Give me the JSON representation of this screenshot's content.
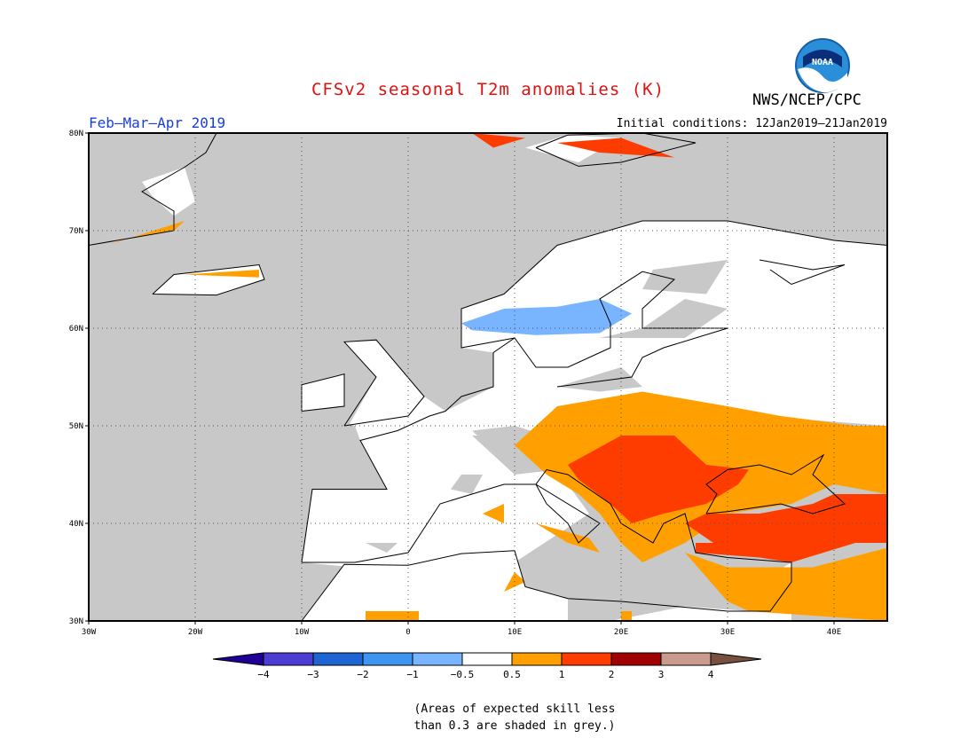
{
  "header": {
    "title": "CFSv2 seasonal T2m anomalies (K)",
    "period": "Feb–Mar–Apr 2019",
    "initial_conditions": "Initial conditions: 12Jan2019–21Jan2019",
    "agency": "NWS/NCEP/CPC",
    "logo_text": "NOAA"
  },
  "map": {
    "lon_range": [
      -30,
      45
    ],
    "lat_range": [
      30,
      80
    ],
    "lon_ticks": [
      {
        "value": -30,
        "label": "30W"
      },
      {
        "value": -20,
        "label": "20W"
      },
      {
        "value": -10,
        "label": "10W"
      },
      {
        "value": 0,
        "label": "0"
      },
      {
        "value": 10,
        "label": "10E"
      },
      {
        "value": 20,
        "label": "20E"
      },
      {
        "value": 30,
        "label": "30E"
      },
      {
        "value": 40,
        "label": "40E"
      }
    ],
    "lat_ticks": [
      {
        "value": 30,
        "label": "30N"
      },
      {
        "value": 40,
        "label": "40N"
      },
      {
        "value": 50,
        "label": "50N"
      },
      {
        "value": 60,
        "label": "60N"
      },
      {
        "value": 70,
        "label": "70N"
      },
      {
        "value": 80,
        "label": "80N"
      }
    ],
    "colors": {
      "low_skill": "#c8c8c8",
      "neutral": "#ffffff",
      "warm1": "#ffa000",
      "warm2": "#ff3c00",
      "cool1": "#78b4ff"
    }
  },
  "colorbar": {
    "colors": [
      "#1e0096",
      "#4b3cd2",
      "#1e64d2",
      "#3c96f0",
      "#78b4ff",
      "#ffffff",
      "#ffa000",
      "#ff3c00",
      "#a00000",
      "#c89b8c",
      "#785040"
    ],
    "labels": [
      "−4",
      "−3",
      "−2",
      "−1",
      "−0.5",
      "0.5",
      "1",
      "2",
      "3",
      "4"
    ]
  },
  "footnote": {
    "line1": "(Areas of expected skill less",
    "line2": "than 0.3 are shaded in grey.)"
  }
}
